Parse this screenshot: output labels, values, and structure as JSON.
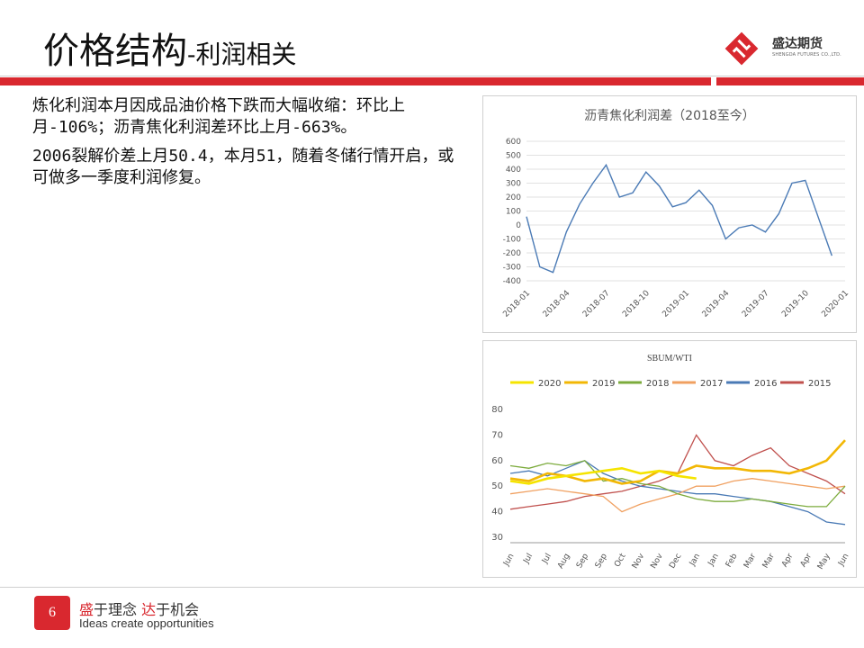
{
  "header": {
    "title_main": "价格结构",
    "title_sub": "-利润相关",
    "logo_name": "盛达期货",
    "logo_sub": "SHENGDA FUTURES CO.,LTD."
  },
  "body": {
    "paragraphs": [
      "炼化利润本月因成品油价格下跌而大幅收缩：环比上月-106%；沥青焦化利润差环比上月-663%。",
      "2006裂解价差上月50.4，本月51，随着冬储行情开启，或可做多一季度利润修复。"
    ]
  },
  "footer": {
    "page_number": "6",
    "slogan_cn_1": "盛",
    "slogan_cn_2": "于理念 ",
    "slogan_cn_3": "达",
    "slogan_cn_4": "于机会",
    "slogan_en": "Ideas create opportunities"
  },
  "chart_data": [
    {
      "type": "line",
      "title": "沥青焦化利润差（2018至今）",
      "ylim": [
        -400,
        600
      ],
      "yticks": [
        -400,
        -300,
        -200,
        -100,
        0,
        100,
        200,
        300,
        400,
        500,
        600
      ],
      "xticks": [
        "2018-01",
        "2018-04",
        "2018-07",
        "2018-10",
        "2019-01",
        "2019-04",
        "2019-07",
        "2019-10",
        "2020-01"
      ],
      "grid": true,
      "series": [
        {
          "color": "#4a7ab5",
          "x": [
            "2018-01",
            "2018-02",
            "2018-03",
            "2018-04",
            "2018-05",
            "2018-06",
            "2018-07",
            "2018-08",
            "2018-09",
            "2018-10",
            "2018-11",
            "2018-12",
            "2019-01",
            "2019-02",
            "2019-03",
            "2019-04",
            "2019-05",
            "2019-06",
            "2019-07",
            "2019-08",
            "2019-09",
            "2019-10",
            "2019-11",
            "2019-12"
          ],
          "values": [
            60,
            -300,
            -340,
            -50,
            150,
            300,
            430,
            200,
            230,
            380,
            280,
            130,
            160,
            250,
            140,
            -100,
            -20,
            0,
            -50,
            80,
            300,
            320,
            50,
            -220
          ]
        }
      ]
    },
    {
      "type": "line",
      "title": "SBUM/WTI",
      "ylim": [
        30,
        80
      ],
      "yticks": [
        30,
        40,
        50,
        60,
        70,
        80
      ],
      "categories": [
        "Jun",
        "Jul",
        "Jul",
        "Aug",
        "Sep",
        "Sep",
        "Oct",
        "Nov",
        "Nov",
        "Dec",
        "Jan",
        "Jan",
        "Feb",
        "Mar",
        "Mar",
        "Apr",
        "Apr",
        "May",
        "Jun"
      ],
      "legend_position": "top",
      "grid": false,
      "series": [
        {
          "name": "2020",
          "color": "#f5e400",
          "values": [
            52,
            51,
            53,
            54,
            55,
            56,
            57,
            55,
            56,
            54,
            53,
            null,
            null,
            null,
            null,
            null,
            null,
            null,
            null
          ]
        },
        {
          "name": "2019",
          "color": "#f2b705",
          "values": [
            53,
            52,
            55,
            54,
            52,
            53,
            51,
            52,
            56,
            55,
            58,
            57,
            57,
            56,
            56,
            55,
            57,
            60,
            68
          ]
        },
        {
          "name": "2018",
          "color": "#7cab3c",
          "values": [
            58,
            57,
            59,
            58,
            60,
            52,
            53,
            51,
            50,
            47,
            45,
            44,
            44,
            45,
            44,
            43,
            42,
            42,
            50
          ]
        },
        {
          "name": "2017",
          "color": "#f0a060",
          "values": [
            47,
            48,
            49,
            48,
            47,
            46,
            40,
            43,
            45,
            47,
            50,
            50,
            52,
            53,
            52,
            51,
            50,
            49,
            50
          ]
        },
        {
          "name": "2016",
          "color": "#4a7ab5",
          "values": [
            55,
            56,
            54,
            57,
            60,
            55,
            52,
            50,
            49,
            48,
            47,
            47,
            46,
            45,
            44,
            42,
            40,
            36,
            35
          ]
        },
        {
          "name": "2015",
          "color": "#c0504d",
          "values": [
            41,
            42,
            43,
            44,
            46,
            47,
            48,
            50,
            52,
            55,
            70,
            60,
            58,
            62,
            65,
            58,
            55,
            52,
            47
          ]
        }
      ]
    }
  ]
}
